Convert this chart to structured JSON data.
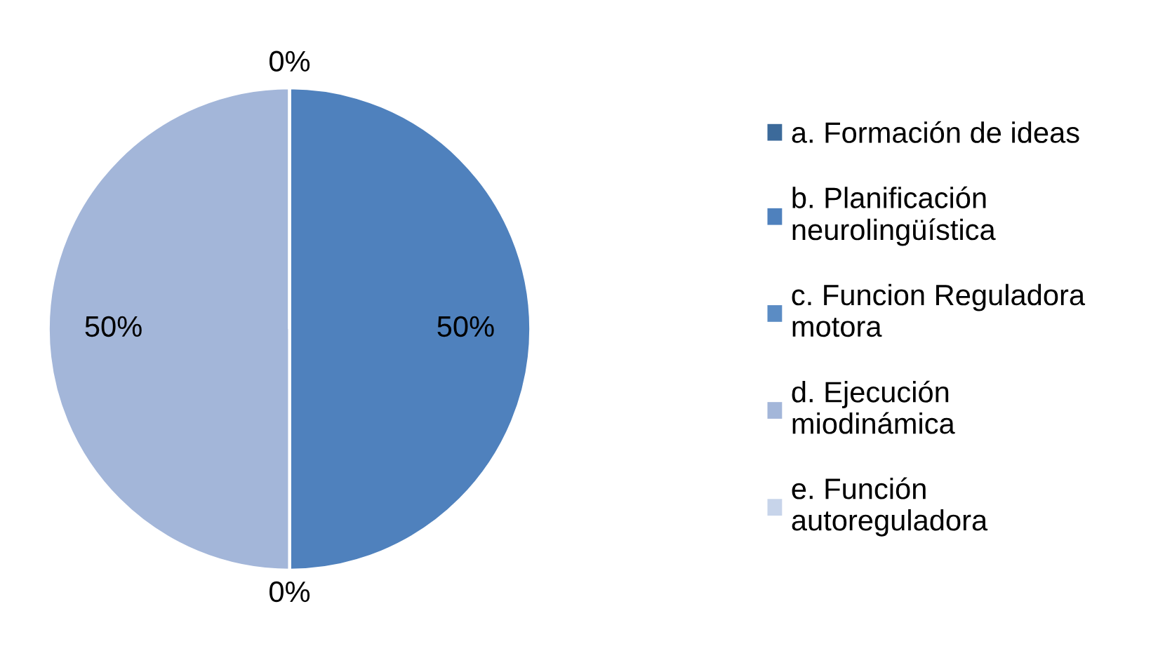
{
  "chart_data": {
    "type": "pie",
    "categories": [
      "a. Formación de ideas",
      "b. Planificación\nneurolingüística",
      "c. Funcion Reguladora\nmotora",
      "d. Ejecución\nmiodinámica",
      "e. Función\nautoreguladora"
    ],
    "values": [
      0,
      50,
      0,
      50,
      0
    ],
    "value_labels": [
      "0%",
      "50%",
      "0%",
      "50%",
      null
    ],
    "colors": [
      "#3c6a9a",
      "#4f81bd",
      "#5b8cc4",
      "#a3b6d9",
      "#c7d4ea"
    ],
    "legend": "right"
  }
}
